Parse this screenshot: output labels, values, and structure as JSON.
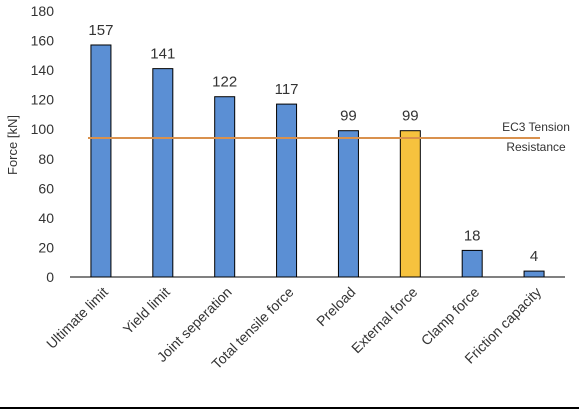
{
  "chart_data": {
    "type": "bar",
    "title": "",
    "xlabel": "",
    "ylabel": "Force [kN]",
    "ylim": [
      0,
      180
    ],
    "yticks": [
      0,
      20,
      40,
      60,
      80,
      100,
      120,
      140,
      160,
      180
    ],
    "grid": false,
    "legend": "none",
    "categories": [
      "Ultimate limit",
      "Yield limit",
      "Joint seperation",
      "Total tensile force",
      "Preload",
      "External force",
      "Clamp force",
      "Friction capacity"
    ],
    "values": [
      157,
      141,
      122,
      117,
      99,
      99,
      18,
      4
    ],
    "data_labels": [
      "157",
      "141",
      "122",
      "117",
      "99",
      "99",
      "18",
      "4"
    ],
    "highlight_index": 5,
    "reference_line": {
      "value": 94.1,
      "label_lines": [
        "EC3 Tension",
        "Resistance"
      ],
      "color": "#d9914d"
    },
    "colors": {
      "bar": "#5b8fd4",
      "bar_highlight": "#f6c23e",
      "bar_stroke": "#000000",
      "axis": "#000000",
      "text": "#333333"
    }
  }
}
